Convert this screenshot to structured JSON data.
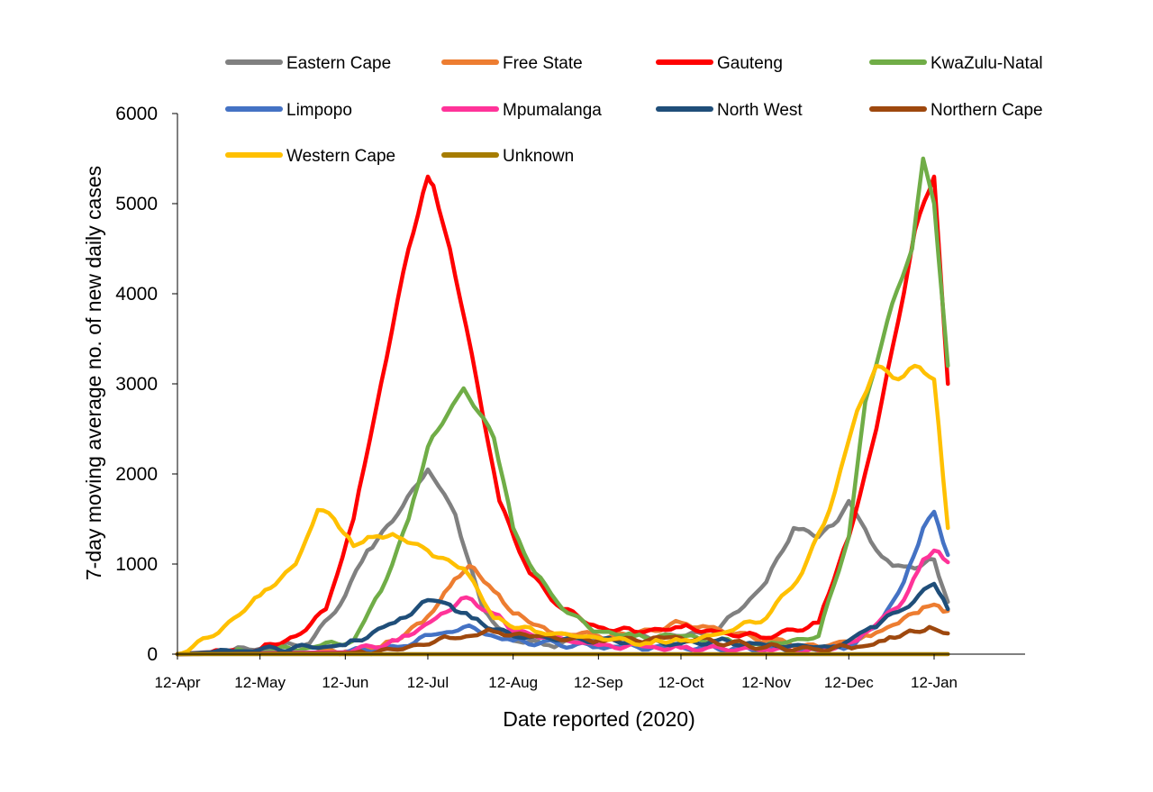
{
  "chart_data": {
    "type": "line",
    "title": "",
    "xlabel": "Date reported (2020)",
    "ylabel": "7-day moving average no. of new daily cases",
    "x_ticks": [
      "12-Apr",
      "12-May",
      "12-Jun",
      "12-Jul",
      "12-Aug",
      "12-Sep",
      "12-Oct",
      "12-Nov",
      "12-Dec",
      "12-Jan"
    ],
    "y_ticks": [
      "0",
      "1000",
      "2000",
      "3000",
      "4000",
      "5000",
      "6000"
    ],
    "ylim": [
      0,
      6000
    ],
    "grid": false,
    "legend_position": "top",
    "series": [
      {
        "name": "Eastern Cape",
        "color": "#808080",
        "x": [
          "2020-04-12",
          "2020-05-12",
          "2020-05-30",
          "2020-06-12",
          "2020-06-20",
          "2020-07-01",
          "2020-07-12",
          "2020-07-22",
          "2020-08-01",
          "2020-08-12",
          "2020-08-25",
          "2020-09-12",
          "2020-09-25",
          "2020-10-12",
          "2020-10-25",
          "2020-11-12",
          "2020-11-22",
          "2020-12-01",
          "2020-12-08",
          "2020-12-12",
          "2020-12-20",
          "2020-12-28",
          "2021-01-05",
          "2021-01-12",
          "2021-01-17"
        ],
        "y": [
          0,
          60,
          120,
          650,
          1150,
          1550,
          2050,
          1550,
          500,
          150,
          100,
          170,
          200,
          200,
          250,
          800,
          1400,
          1300,
          1480,
          1700,
          1250,
          980,
          950,
          1050,
          580
        ]
      },
      {
        "name": "Free State",
        "color": "#ED7D31",
        "x": [
          "2020-04-12",
          "2020-06-12",
          "2020-06-25",
          "2020-07-10",
          "2020-07-20",
          "2020-07-27",
          "2020-08-05",
          "2020-08-12",
          "2020-08-25",
          "2020-09-12",
          "2020-09-25",
          "2020-10-12",
          "2020-10-22",
          "2020-11-12",
          "2020-12-01",
          "2020-12-20",
          "2021-01-01",
          "2021-01-08",
          "2021-01-12",
          "2021-01-17"
        ],
        "y": [
          0,
          30,
          80,
          350,
          750,
          980,
          700,
          450,
          250,
          200,
          220,
          350,
          300,
          150,
          80,
          200,
          400,
          520,
          550,
          480
        ]
      },
      {
        "name": "Gauteng",
        "color": "#FF0000",
        "x": [
          "2020-04-12",
          "2020-05-12",
          "2020-05-25",
          "2020-06-05",
          "2020-06-15",
          "2020-06-25",
          "2020-07-05",
          "2020-07-12",
          "2020-07-14",
          "2020-07-20",
          "2020-07-30",
          "2020-08-07",
          "2020-08-18",
          "2020-08-30",
          "2020-09-12",
          "2020-09-25",
          "2020-10-12",
          "2020-10-25",
          "2020-11-12",
          "2020-12-01",
          "2020-12-12",
          "2020-12-22",
          "2020-12-30",
          "2021-01-05",
          "2021-01-12",
          "2021-01-17"
        ],
        "y": [
          0,
          50,
          200,
          500,
          1500,
          3000,
          4500,
          5300,
          5200,
          4500,
          3000,
          1700,
          900,
          500,
          300,
          250,
          300,
          250,
          180,
          350,
          1300,
          2500,
          3700,
          4700,
          5300,
          3000
        ]
      },
      {
        "name": "KwaZulu-Natal",
        "color": "#70AD47",
        "x": [
          "2020-04-12",
          "2020-05-12",
          "2020-06-01",
          "2020-06-15",
          "2020-06-25",
          "2020-07-05",
          "2020-07-12",
          "2020-07-19",
          "2020-07-25",
          "2020-08-05",
          "2020-08-12",
          "2020-08-20",
          "2020-08-30",
          "2020-09-12",
          "2020-09-25",
          "2020-10-12",
          "2020-10-25",
          "2020-11-12",
          "2020-12-01",
          "2020-12-12",
          "2020-12-18",
          "2020-12-26",
          "2021-01-04",
          "2021-01-08",
          "2021-01-12",
          "2021-01-17"
        ],
        "y": [
          0,
          30,
          80,
          150,
          700,
          1500,
          2300,
          2650,
          2950,
          2400,
          1400,
          900,
          500,
          250,
          200,
          200,
          150,
          100,
          200,
          1300,
          2800,
          3700,
          4500,
          5500,
          5000,
          3200
        ]
      },
      {
        "name": "Limpopo",
        "color": "#4472C4",
        "x": [
          "2020-04-12",
          "2020-06-12",
          "2020-07-01",
          "2020-07-15",
          "2020-07-25",
          "2020-08-12",
          "2020-09-12",
          "2020-10-12",
          "2020-11-12",
          "2020-12-01",
          "2020-12-12",
          "2020-12-22",
          "2021-01-01",
          "2021-01-08",
          "2021-01-12",
          "2021-01-17"
        ],
        "y": [
          0,
          20,
          80,
          220,
          300,
          150,
          80,
          80,
          50,
          40,
          80,
          300,
          800,
          1400,
          1580,
          1100
        ]
      },
      {
        "name": "Mpumalanga",
        "color": "#FF3399",
        "x": [
          "2020-04-12",
          "2020-06-12",
          "2020-07-01",
          "2020-07-15",
          "2020-07-26",
          "2020-08-05",
          "2020-08-12",
          "2020-09-12",
          "2020-10-12",
          "2020-11-12",
          "2020-12-01",
          "2020-12-15",
          "2021-01-01",
          "2021-01-08",
          "2021-01-12",
          "2021-01-17"
        ],
        "y": [
          0,
          20,
          150,
          400,
          630,
          450,
          250,
          100,
          70,
          50,
          40,
          150,
          600,
          1050,
          1150,
          1020
        ]
      },
      {
        "name": "North West",
        "color": "#1F4E79",
        "x": [
          "2020-04-12",
          "2020-06-12",
          "2020-06-30",
          "2020-07-12",
          "2020-07-20",
          "2020-07-28",
          "2020-08-12",
          "2020-09-12",
          "2020-10-12",
          "2020-10-25",
          "2020-11-12",
          "2020-12-05",
          "2020-12-12",
          "2020-12-20",
          "2021-01-01",
          "2021-01-12",
          "2021-01-17"
        ],
        "y": [
          0,
          100,
          350,
          600,
          550,
          400,
          200,
          150,
          120,
          150,
          100,
          80,
          150,
          300,
          500,
          780,
          500
        ]
      },
      {
        "name": "Northern Cape",
        "color": "#9E480E",
        "x": [
          "2020-04-12",
          "2020-06-12",
          "2020-07-01",
          "2020-07-20",
          "2020-08-05",
          "2020-08-20",
          "2020-09-12",
          "2020-10-12",
          "2020-11-12",
          "2020-12-01",
          "2020-12-15",
          "2020-12-25",
          "2021-01-05",
          "2021-01-12",
          "2021-01-17"
        ],
        "y": [
          0,
          10,
          50,
          180,
          250,
          200,
          150,
          180,
          80,
          50,
          80,
          150,
          250,
          280,
          230
        ]
      },
      {
        "name": "Western Cape",
        "color": "#FFC000",
        "x": [
          "2020-04-12",
          "2020-04-25",
          "2020-05-12",
          "2020-05-25",
          "2020-06-02",
          "2020-06-08",
          "2020-06-15",
          "2020-06-22",
          "2020-07-01",
          "2020-07-12",
          "2020-07-25",
          "2020-08-05",
          "2020-08-20",
          "2020-09-12",
          "2020-10-01",
          "2020-10-12",
          "2020-10-25",
          "2020-11-12",
          "2020-11-25",
          "2020-12-05",
          "2020-12-15",
          "2020-12-22",
          "2020-12-30",
          "2021-01-05",
          "2021-01-12",
          "2021-01-17"
        ],
        "y": [
          0,
          200,
          650,
          1000,
          1600,
          1500,
          1200,
          1300,
          1300,
          1150,
          950,
          400,
          250,
          180,
          120,
          150,
          220,
          400,
          900,
          1600,
          2700,
          3200,
          3050,
          3200,
          3050,
          1400
        ]
      },
      {
        "name": "Unknown",
        "color": "#A67C00",
        "x": [
          "2020-04-12",
          "2021-01-17"
        ],
        "y": [
          0,
          0
        ]
      }
    ]
  }
}
